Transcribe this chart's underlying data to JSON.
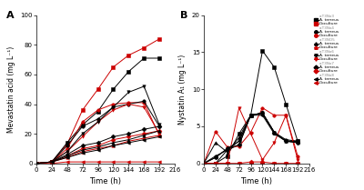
{
  "time": [
    0,
    24,
    48,
    72,
    96,
    120,
    144,
    168,
    192
  ],
  "panel_A": {
    "title": "A",
    "ylabel": "Mevastatin acid (mg L⁻¹)",
    "xlabel": "Time (h)",
    "xlim": [
      0,
      216
    ],
    "ylim": [
      0,
      100
    ],
    "yticks": [
      0,
      20,
      40,
      60,
      80,
      100
    ],
    "xticks": [
      0,
      24,
      48,
      72,
      96,
      120,
      144,
      168,
      192,
      216
    ],
    "xtick_labels": [
      "0",
      "24",
      "48",
      "72",
      "96",
      "120",
      "144",
      "168",
      "192",
      "216"
    ],
    "series": [
      {
        "color": "#cc0000",
        "marker": "s",
        "data": [
          0,
          1,
          13,
          36,
          50,
          65,
          73,
          78,
          84
        ]
      },
      {
        "color": "#000000",
        "marker": "s",
        "data": [
          0,
          1,
          14,
          26,
          35,
          50,
          62,
          71,
          71
        ]
      },
      {
        "color": "#cc0000",
        "marker": "o",
        "data": [
          0,
          1,
          10,
          28,
          36,
          40,
          41,
          41,
          19
        ]
      },
      {
        "color": "#000000",
        "marker": "o",
        "data": [
          0,
          1,
          12,
          25,
          30,
          38,
          40,
          42,
          25
        ]
      },
      {
        "color": "#cc0000",
        "marker": "v",
        "data": [
          0,
          1,
          8,
          18,
          28,
          36,
          40,
          38,
          20
        ]
      },
      {
        "color": "#000000",
        "marker": "v",
        "data": [
          0,
          1,
          8,
          20,
          28,
          38,
          48,
          52,
          26
        ]
      },
      {
        "color": "#cc0000",
        "marker": "D",
        "data": [
          0,
          1,
          5,
          10,
          12,
          16,
          18,
          20,
          22
        ]
      },
      {
        "color": "#000000",
        "marker": "D",
        "data": [
          0,
          1,
          6,
          12,
          14,
          18,
          20,
          23,
          25
        ]
      },
      {
        "color": "#cc0000",
        "marker": "^",
        "data": [
          0,
          1,
          4,
          8,
          10,
          12,
          15,
          17,
          19
        ]
      },
      {
        "color": "#000000",
        "marker": "^",
        "data": [
          0,
          1,
          5,
          9,
          11,
          14,
          16,
          19,
          22
        ]
      },
      {
        "color": "#cc0000",
        "marker": "<",
        "data": [
          0,
          0,
          1,
          1,
          1,
          1,
          1,
          1,
          1
        ]
      },
      {
        "color": "#000000",
        "marker": "<",
        "data": [
          0,
          1,
          4,
          7,
          9,
          12,
          14,
          16,
          18
        ]
      }
    ]
  },
  "panel_B": {
    "title": "B",
    "ylabel": "Nystatin A₁ (mg L⁻¹)",
    "xlabel": "Time (h)",
    "xlim": [
      0,
      216
    ],
    "ylim": [
      0,
      20
    ],
    "yticks": [
      0,
      5,
      10,
      15,
      20
    ],
    "xticks": [
      0,
      24,
      48,
      72,
      96,
      120,
      144,
      168,
      192,
      216
    ],
    "xtick_labels": [
      "0",
      "24",
      "48",
      "72",
      "96",
      "120",
      "144",
      "168",
      "192",
      "216"
    ],
    "series": [
      {
        "color": "#000000",
        "marker": "s",
        "data": [
          0,
          0,
          1,
          4,
          6.5,
          15.2,
          13,
          8,
          3
        ]
      },
      {
        "color": "#cc0000",
        "marker": "s",
        "data": [
          0,
          0,
          0,
          0,
          0,
          0,
          0,
          0,
          0
        ]
      },
      {
        "color": "#000000",
        "marker": "o",
        "data": [
          0,
          1,
          1.8,
          2.5,
          6.5,
          6.8,
          4.2,
          3.2,
          3
        ]
      },
      {
        "color": "#cc0000",
        "marker": "o",
        "data": [
          0,
          4.3,
          2.2,
          2.3,
          4.2,
          7.5,
          6.5,
          6.5,
          1
        ]
      },
      {
        "color": "#000000",
        "marker": "^",
        "data": [
          0,
          2.8,
          1.5,
          3.5,
          6.5,
          6.8,
          4.2,
          3,
          3
        ]
      },
      {
        "color": "#cc0000",
        "marker": "^",
        "data": [
          0,
          0,
          0,
          0,
          0,
          0,
          0,
          0,
          0
        ]
      },
      {
        "color": "#000000",
        "marker": "v",
        "data": [
          0,
          0,
          1.8,
          3,
          6.5,
          6.8,
          4.2,
          3,
          3
        ]
      },
      {
        "color": "#cc0000",
        "marker": "v",
        "data": [
          0,
          0,
          0,
          7.5,
          4,
          0.5,
          2.8,
          6.5,
          0.5
        ]
      },
      {
        "color": "#000000",
        "marker": "D",
        "data": [
          0,
          0.8,
          2.0,
          2.5,
          6.5,
          6.8,
          4.2,
          3,
          2.8
        ]
      },
      {
        "color": "#cc0000",
        "marker": "D",
        "data": [
          0,
          0,
          0,
          0,
          0.2,
          0.2,
          0,
          0,
          0
        ]
      },
      {
        "color": "#000000",
        "marker": "<",
        "data": [
          0,
          0.8,
          2.0,
          3.0,
          6.5,
          6.5,
          4.0,
          3.0,
          2.8
        ]
      },
      {
        "color": "#cc0000",
        "marker": "<",
        "data": [
          0,
          0,
          0,
          0,
          0,
          0,
          0,
          0,
          0
        ]
      }
    ],
    "legend_groups": [
      {
        "strain": "a.T3No3",
        "marker": "s"
      },
      {
        "strain": "a.T3No4",
        "marker": "o"
      },
      {
        "strain": "a.T3NO5",
        "marker": "^"
      },
      {
        "strain": "a.T3No6",
        "marker": "v"
      },
      {
        "strain": "a.T3No7",
        "marker": "D"
      },
      {
        "strain": "a.T3No8",
        "marker": "<"
      }
    ]
  }
}
